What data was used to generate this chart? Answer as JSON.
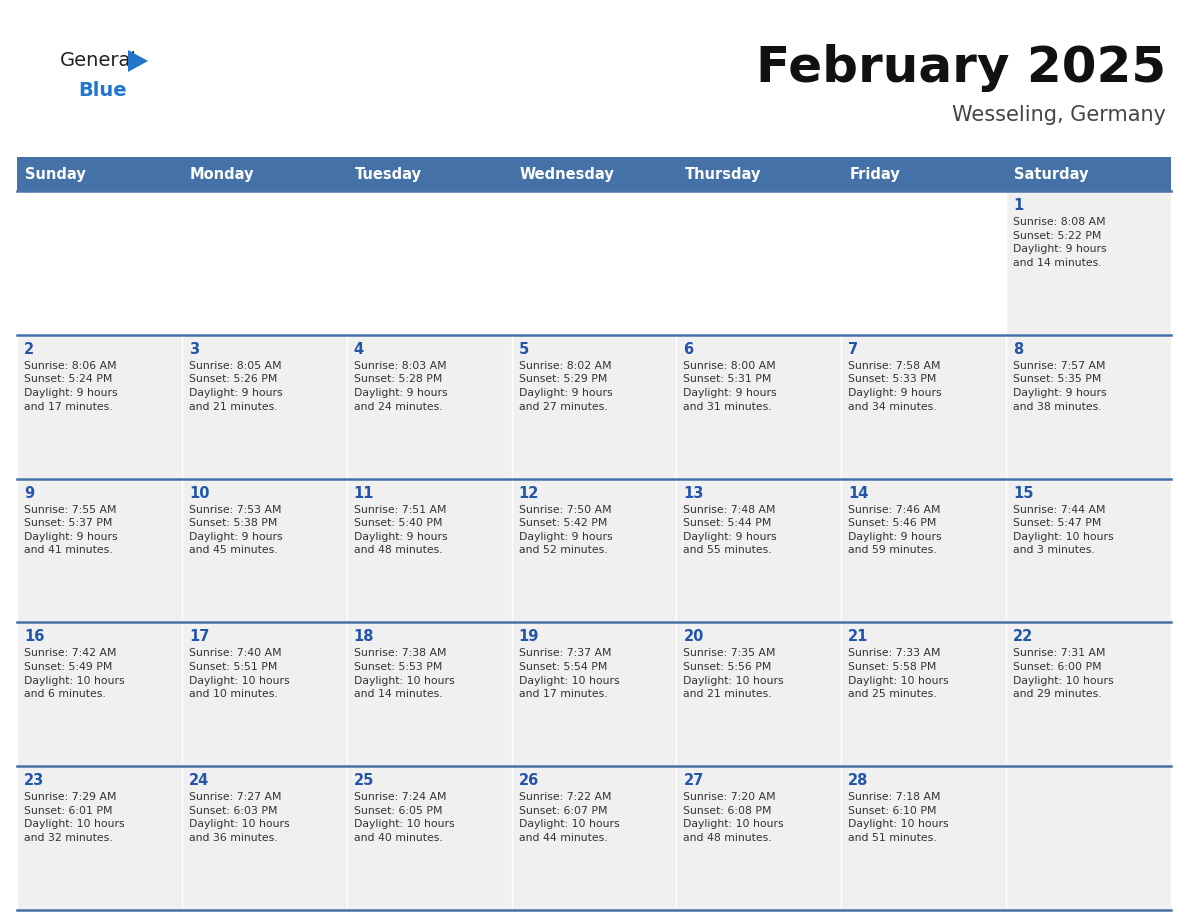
{
  "title": "February 2025",
  "subtitle": "Wesseling, Germany",
  "days_of_week": [
    "Sunday",
    "Monday",
    "Tuesday",
    "Wednesday",
    "Thursday",
    "Friday",
    "Saturday"
  ],
  "header_bg": "#4472a8",
  "header_text": "#ffffff",
  "cell_bg": "#f0f0f0",
  "cell_bg_white": "#ffffff",
  "day_number_color": "#2255aa",
  "text_color": "#333333",
  "border_color": "#4472a8",
  "weeks": [
    [
      {
        "day": null,
        "info": null
      },
      {
        "day": null,
        "info": null
      },
      {
        "day": null,
        "info": null
      },
      {
        "day": null,
        "info": null
      },
      {
        "day": null,
        "info": null
      },
      {
        "day": null,
        "info": null
      },
      {
        "day": 1,
        "info": "Sunrise: 8:08 AM\nSunset: 5:22 PM\nDaylight: 9 hours\nand 14 minutes."
      }
    ],
    [
      {
        "day": 2,
        "info": "Sunrise: 8:06 AM\nSunset: 5:24 PM\nDaylight: 9 hours\nand 17 minutes."
      },
      {
        "day": 3,
        "info": "Sunrise: 8:05 AM\nSunset: 5:26 PM\nDaylight: 9 hours\nand 21 minutes."
      },
      {
        "day": 4,
        "info": "Sunrise: 8:03 AM\nSunset: 5:28 PM\nDaylight: 9 hours\nand 24 minutes."
      },
      {
        "day": 5,
        "info": "Sunrise: 8:02 AM\nSunset: 5:29 PM\nDaylight: 9 hours\nand 27 minutes."
      },
      {
        "day": 6,
        "info": "Sunrise: 8:00 AM\nSunset: 5:31 PM\nDaylight: 9 hours\nand 31 minutes."
      },
      {
        "day": 7,
        "info": "Sunrise: 7:58 AM\nSunset: 5:33 PM\nDaylight: 9 hours\nand 34 minutes."
      },
      {
        "day": 8,
        "info": "Sunrise: 7:57 AM\nSunset: 5:35 PM\nDaylight: 9 hours\nand 38 minutes."
      }
    ],
    [
      {
        "day": 9,
        "info": "Sunrise: 7:55 AM\nSunset: 5:37 PM\nDaylight: 9 hours\nand 41 minutes."
      },
      {
        "day": 10,
        "info": "Sunrise: 7:53 AM\nSunset: 5:38 PM\nDaylight: 9 hours\nand 45 minutes."
      },
      {
        "day": 11,
        "info": "Sunrise: 7:51 AM\nSunset: 5:40 PM\nDaylight: 9 hours\nand 48 minutes."
      },
      {
        "day": 12,
        "info": "Sunrise: 7:50 AM\nSunset: 5:42 PM\nDaylight: 9 hours\nand 52 minutes."
      },
      {
        "day": 13,
        "info": "Sunrise: 7:48 AM\nSunset: 5:44 PM\nDaylight: 9 hours\nand 55 minutes."
      },
      {
        "day": 14,
        "info": "Sunrise: 7:46 AM\nSunset: 5:46 PM\nDaylight: 9 hours\nand 59 minutes."
      },
      {
        "day": 15,
        "info": "Sunrise: 7:44 AM\nSunset: 5:47 PM\nDaylight: 10 hours\nand 3 minutes."
      }
    ],
    [
      {
        "day": 16,
        "info": "Sunrise: 7:42 AM\nSunset: 5:49 PM\nDaylight: 10 hours\nand 6 minutes."
      },
      {
        "day": 17,
        "info": "Sunrise: 7:40 AM\nSunset: 5:51 PM\nDaylight: 10 hours\nand 10 minutes."
      },
      {
        "day": 18,
        "info": "Sunrise: 7:38 AM\nSunset: 5:53 PM\nDaylight: 10 hours\nand 14 minutes."
      },
      {
        "day": 19,
        "info": "Sunrise: 7:37 AM\nSunset: 5:54 PM\nDaylight: 10 hours\nand 17 minutes."
      },
      {
        "day": 20,
        "info": "Sunrise: 7:35 AM\nSunset: 5:56 PM\nDaylight: 10 hours\nand 21 minutes."
      },
      {
        "day": 21,
        "info": "Sunrise: 7:33 AM\nSunset: 5:58 PM\nDaylight: 10 hours\nand 25 minutes."
      },
      {
        "day": 22,
        "info": "Sunrise: 7:31 AM\nSunset: 6:00 PM\nDaylight: 10 hours\nand 29 minutes."
      }
    ],
    [
      {
        "day": 23,
        "info": "Sunrise: 7:29 AM\nSunset: 6:01 PM\nDaylight: 10 hours\nand 32 minutes."
      },
      {
        "day": 24,
        "info": "Sunrise: 7:27 AM\nSunset: 6:03 PM\nDaylight: 10 hours\nand 36 minutes."
      },
      {
        "day": 25,
        "info": "Sunrise: 7:24 AM\nSunset: 6:05 PM\nDaylight: 10 hours\nand 40 minutes."
      },
      {
        "day": 26,
        "info": "Sunrise: 7:22 AM\nSunset: 6:07 PM\nDaylight: 10 hours\nand 44 minutes."
      },
      {
        "day": 27,
        "info": "Sunrise: 7:20 AM\nSunset: 6:08 PM\nDaylight: 10 hours\nand 48 minutes."
      },
      {
        "day": 28,
        "info": "Sunrise: 7:18 AM\nSunset: 6:10 PM\nDaylight: 10 hours\nand 51 minutes."
      },
      {
        "day": null,
        "info": null
      }
    ]
  ]
}
